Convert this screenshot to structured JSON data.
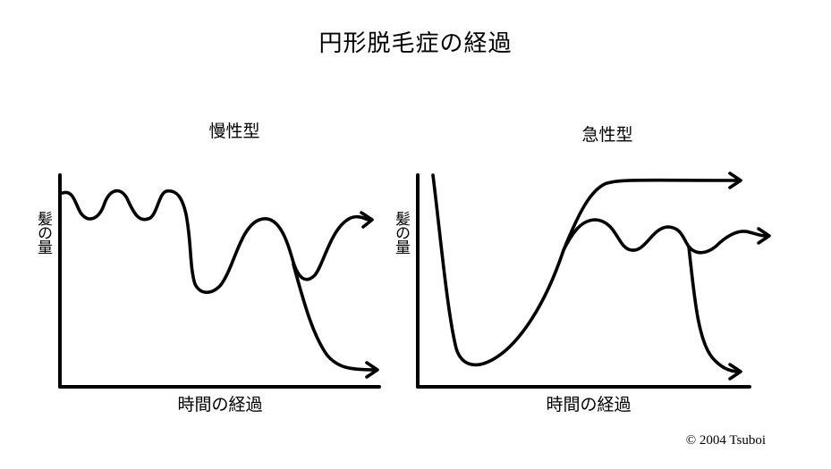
{
  "title": "円形脱毛症の経過",
  "panels": [
    {
      "title": "慢性型",
      "ylabel": "髪の量",
      "xlabel": "時間の経過"
    },
    {
      "title": "急性型",
      "ylabel": "髪の量",
      "xlabel": "時間の経過"
    }
  ],
  "copyright": "© 2004 Tsuboi"
}
